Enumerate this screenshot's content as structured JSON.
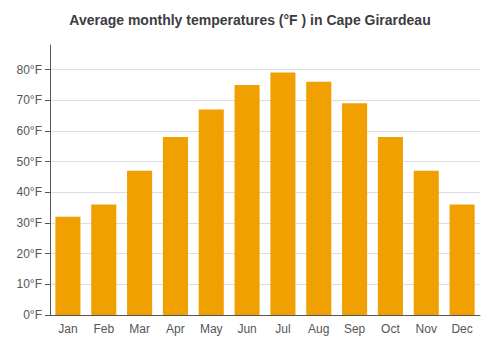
{
  "chart_data": {
    "type": "bar",
    "title": "Average monthly temperatures (°F ) in Cape Girardeau",
    "categories": [
      "Jan",
      "Feb",
      "Mar",
      "Apr",
      "May",
      "Jun",
      "Jul",
      "Aug",
      "Sep",
      "Oct",
      "Nov",
      "Dec"
    ],
    "values": [
      32,
      36,
      47,
      58,
      67,
      75,
      79,
      76,
      69,
      58,
      47,
      36
    ],
    "color": "#F0A000",
    "ylim": [
      0,
      88
    ],
    "yticks": [
      {
        "value": 0,
        "label": "0°F"
      },
      {
        "value": 10,
        "label": "10°F"
      },
      {
        "value": 20,
        "label": "20°F"
      },
      {
        "value": 30,
        "label": "30°F"
      },
      {
        "value": 40,
        "label": "40°F"
      },
      {
        "value": 50,
        "label": "50°F"
      },
      {
        "value": 60,
        "label": "60°F"
      },
      {
        "value": 70,
        "label": "70°F"
      },
      {
        "value": 80,
        "label": "80°F"
      }
    ],
    "grid": true
  }
}
